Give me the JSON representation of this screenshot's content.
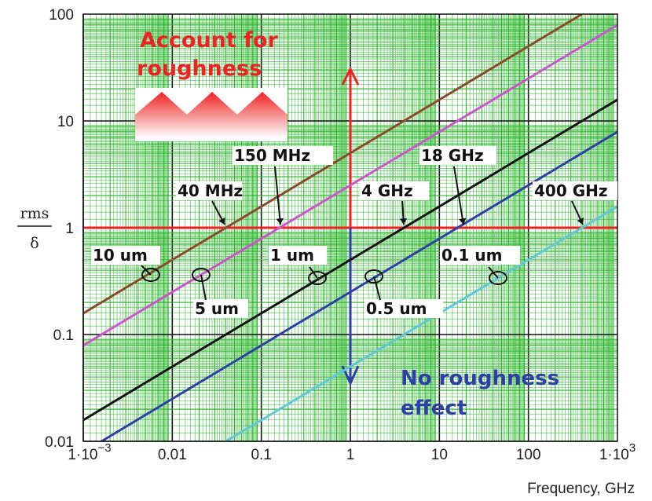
{
  "chart_data": {
    "type": "line",
    "xlabel": "Frequency, GHz",
    "ylabel_top": "rms",
    "ylabel_bottom": "δ",
    "x_scale": "log",
    "y_scale": "log",
    "xlim": [
      0.001,
      1000
    ],
    "ylim": [
      0.01,
      100
    ],
    "grid": true,
    "x_ticks": [
      {
        "value": 0.001,
        "label": "1·10",
        "exp": "−3"
      },
      {
        "value": 0.01,
        "label": "0.01"
      },
      {
        "value": 0.1,
        "label": "0.1"
      },
      {
        "value": 1,
        "label": "1"
      },
      {
        "value": 10,
        "label": "10"
      },
      {
        "value": 100,
        "label": "100"
      },
      {
        "value": 1000,
        "label": "1·10",
        "exp": "3"
      }
    ],
    "y_ticks": [
      {
        "value": 100,
        "label": "100"
      },
      {
        "value": 10,
        "label": "10"
      },
      {
        "value": 1,
        "label": "1"
      },
      {
        "value": 0.1,
        "label": "0.1"
      },
      {
        "value": 0.01,
        "label": "0.01"
      }
    ],
    "series": [
      {
        "name": "10 um",
        "color": "#8b4a2b",
        "x": [
          0.001,
          0.01,
          0.1,
          1,
          10,
          100,
          400
        ],
        "y": [
          0.158,
          0.5,
          1.58,
          5.0,
          15.8,
          50,
          100
        ]
      },
      {
        "name": "5 um",
        "color": "#cc55cc",
        "x": [
          0.001,
          0.01,
          0.1,
          1,
          10,
          100,
          1000
        ],
        "y": [
          0.079,
          0.25,
          0.79,
          2.5,
          7.9,
          25,
          79
        ]
      },
      {
        "name": "1 um",
        "color": "#111111",
        "x": [
          0.001,
          0.01,
          0.1,
          1,
          10,
          100,
          1000
        ],
        "y": [
          0.0158,
          0.05,
          0.158,
          0.5,
          1.58,
          5.0,
          15.8
        ]
      },
      {
        "name": "0.5 um",
        "color": "#2e3fa5",
        "x": [
          0.0013,
          0.01,
          0.1,
          1,
          10,
          100,
          1000
        ],
        "y": [
          0.009,
          0.025,
          0.079,
          0.25,
          0.79,
          2.5,
          7.9
        ]
      },
      {
        "name": "0.1 um",
        "color": "#5fc8d8",
        "x": [
          0.035,
          0.1,
          1,
          10,
          100,
          1000
        ],
        "y": [
          0.0094,
          0.0158,
          0.05,
          0.158,
          0.5,
          1.58
        ]
      }
    ],
    "annotations": {
      "freq_labels": [
        "40 MHz",
        "150 MHz",
        "4 GHz",
        "18 GHz",
        "400 GHz"
      ],
      "rough_labels": [
        "10 um",
        "5 um",
        "1 um",
        "0.5 um",
        "0.1 um"
      ],
      "account_line1": "Account for",
      "account_line2": "roughness",
      "no_line1": "No roughness",
      "no_line2": "effect"
    },
    "colors": {
      "grid": "#2bb52b",
      "axis": "#111111",
      "threshold": "#ee2222",
      "down_arrow": "#2e3fa5"
    }
  }
}
